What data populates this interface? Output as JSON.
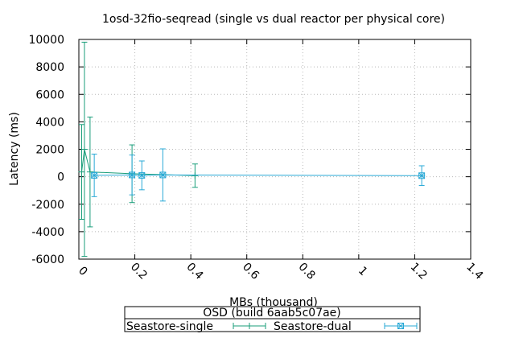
{
  "chart_data": {
    "type": "line",
    "title": "1osd-32fio-seqread (single vs dual reactor per physical core)",
    "xlabel": "MBs (thousand)",
    "ylabel": "Latency (ms)",
    "xlim": [
      0,
      1.4
    ],
    "ylim": [
      -6000,
      10000
    ],
    "x_ticks": [
      "0",
      "0.2",
      "0.4",
      "0.6",
      "0.8",
      "1",
      "1.2",
      "1.4"
    ],
    "x_tick_values": [
      0,
      0.2,
      0.4,
      0.6,
      0.8,
      1.0,
      1.2,
      1.4
    ],
    "y_ticks": [
      "-6000",
      "-4000",
      "-2000",
      "0",
      "2000",
      "4000",
      "6000",
      "8000",
      "10000"
    ],
    "y_tick_values": [
      -6000,
      -4000,
      -2000,
      0,
      2000,
      4000,
      6000,
      8000,
      10000
    ],
    "grid": true,
    "legend": {
      "title": "OSD (build 6aab5c07ae)",
      "placement": "bottom"
    },
    "series": [
      {
        "name": "Seastore-single",
        "color": "#1a9e7a",
        "marker": "plus",
        "points": [
          {
            "x": 0.01,
            "y": 350,
            "err": 3450
          },
          {
            "x": 0.02,
            "y": 2000,
            "err": 7800
          },
          {
            "x": 0.04,
            "y": 350,
            "err": 4000
          },
          {
            "x": 0.19,
            "y": 220,
            "err": 2100
          },
          {
            "x": 0.415,
            "y": 80,
            "err": 850
          }
        ]
      },
      {
        "name": "Seastore-dual",
        "color": "#29a9d6",
        "marker": "star-square",
        "points": [
          {
            "x": 0.055,
            "y": 100,
            "err": 1550
          },
          {
            "x": 0.19,
            "y": 130,
            "err": 1450
          },
          {
            "x": 0.225,
            "y": 100,
            "err": 1050
          },
          {
            "x": 0.3,
            "y": 130,
            "err": 1900
          },
          {
            "x": 1.225,
            "y": 80,
            "err": 720
          }
        ]
      }
    ]
  }
}
